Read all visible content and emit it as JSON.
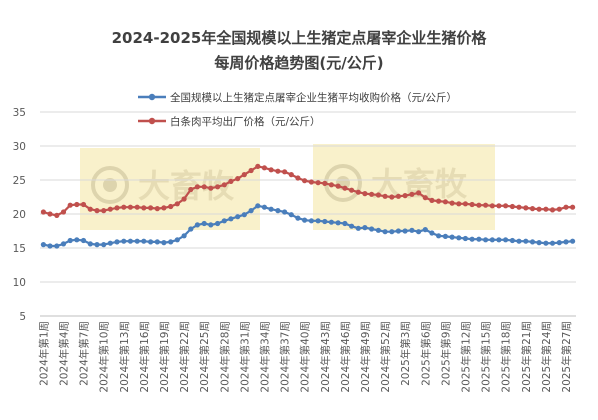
{
  "chart_data": {
    "type": "line",
    "title": "2024-2025年全国规模以上生猪定点屠宰企业生猪价格",
    "subtitle": "每周价格趋势图(元/公斤)",
    "xlabel": "",
    "ylabel": "",
    "ylim": [
      5,
      35
    ],
    "yticks": [
      5,
      10,
      15,
      20,
      25,
      30,
      35
    ],
    "grid": true,
    "legend_position": "top-right",
    "watermark": "大畜牧",
    "x": [
      "2024年第1周",
      "2024年第2周",
      "2024年第3周",
      "2024年第4周",
      "2024年第5周",
      "2024年第6周",
      "2024年第7周",
      "2024年第8周",
      "2024年第9周",
      "2024年第10周",
      "2024年第11周",
      "2024年第12周",
      "2024年第13周",
      "2024年第14周",
      "2024年第15周",
      "2024年第16周",
      "2024年第17周",
      "2024年第18周",
      "2024年第19周",
      "2024年第20周",
      "2024年第21周",
      "2024年第22周",
      "2024年第23周",
      "2024年第24周",
      "2024年第25周",
      "2024年第26周",
      "2024年第27周",
      "2024年第28周",
      "2024年第29周",
      "2024年第30周",
      "2024年第31周",
      "2024年第32周",
      "2024年第33周",
      "2024年第34周",
      "2024年第35周",
      "2024年第36周",
      "2024年第37周",
      "2024年第38周",
      "2024年第39周",
      "2024年第40周",
      "2024年第41周",
      "2024年第42周",
      "2024年第43周",
      "2024年第44周",
      "2024年第45周",
      "2024年第46周",
      "2024年第47周",
      "2024年第48周",
      "2024年第49周",
      "2024年第50周",
      "2024年第51周",
      "2024年第52周",
      "2025年第1周",
      "2025年第2周",
      "2025年第3周",
      "2025年第4周",
      "2025年第5周",
      "2025年第6周",
      "2025年第7周",
      "2025年第8周",
      "2025年第9周",
      "2025年第10周",
      "2025年第11周",
      "2025年第12周",
      "2025年第13周",
      "2025年第14周",
      "2025年第15周",
      "2025年第16周",
      "2025年第17周",
      "2025年第18周",
      "2025年第19周",
      "2025年第20周",
      "2025年第21周",
      "2025年第22周",
      "2025年第23周",
      "2025年第24周",
      "2025年第25周",
      "2025年第26周",
      "2025年第27周",
      "2025年第28周"
    ],
    "tick_indices": [
      0,
      3,
      6,
      9,
      12,
      15,
      18,
      21,
      24,
      27,
      30,
      33,
      36,
      39,
      42,
      45,
      48,
      51,
      54,
      57,
      60,
      63,
      66,
      69,
      72,
      75,
      78
    ],
    "tick_labels": [
      "2024年第1周",
      "2024年第4周",
      "2024年第7周",
      "2024年第10周",
      "2024年第13周",
      "2024年第16周",
      "2024年第19周",
      "2024年第22周",
      "2024年第25周",
      "2024年第28周",
      "2024年第31周",
      "2024年第34周",
      "2024年第37周",
      "2024年第40周",
      "2024年第43周",
      "2024年第46周",
      "2024年第49周",
      "2024年第52周",
      "2025年第3周",
      "2025年第6周",
      "2025年第9周",
      "2025年第12周",
      "2025年第15周",
      "2025年第18周",
      "2025年第21周",
      "2025年第24周",
      "2025年第27周"
    ],
    "series": [
      {
        "name": "全国规模以上生猪定点屠宰企业生猪平均收购价格（元/公斤）",
        "color": "#4a7ebb",
        "values": [
          15.5,
          15.3,
          15.3,
          15.6,
          16.1,
          16.2,
          16.1,
          15.6,
          15.5,
          15.5,
          15.7,
          15.9,
          16.0,
          16.0,
          16.0,
          16.0,
          15.9,
          15.9,
          15.8,
          15.9,
          16.2,
          16.8,
          17.8,
          18.4,
          18.6,
          18.4,
          18.6,
          19.0,
          19.3,
          19.6,
          19.9,
          20.5,
          21.2,
          21.0,
          20.7,
          20.5,
          20.3,
          19.9,
          19.4,
          19.1,
          19.0,
          19.0,
          18.9,
          18.8,
          18.7,
          18.6,
          18.2,
          17.9,
          18.0,
          17.8,
          17.6,
          17.4,
          17.4,
          17.5,
          17.5,
          17.6,
          17.4,
          17.7,
          17.2,
          16.8,
          16.7,
          16.6,
          16.5,
          16.4,
          16.3,
          16.3,
          16.2,
          16.2,
          16.2,
          16.2,
          16.1,
          16.0,
          16.0,
          15.9,
          15.8,
          15.7,
          15.7,
          15.8,
          15.9,
          16.0
        ]
      },
      {
        "name": "白条肉平均出厂价格（元/公斤）",
        "color": "#c0504d",
        "values": [
          20.3,
          20.0,
          19.8,
          20.3,
          21.3,
          21.4,
          21.4,
          20.7,
          20.5,
          20.5,
          20.7,
          20.9,
          21.0,
          21.0,
          21.0,
          20.9,
          20.9,
          20.8,
          20.9,
          21.1,
          21.5,
          22.2,
          23.6,
          24.0,
          24.0,
          23.8,
          24.0,
          24.3,
          24.8,
          25.2,
          25.8,
          26.4,
          27.0,
          26.8,
          26.5,
          26.3,
          26.2,
          25.8,
          25.3,
          24.9,
          24.7,
          24.6,
          24.5,
          24.3,
          24.1,
          23.8,
          23.5,
          23.2,
          23.0,
          22.9,
          22.8,
          22.6,
          22.5,
          22.6,
          22.7,
          22.9,
          23.1,
          22.4,
          22.0,
          21.9,
          21.8,
          21.6,
          21.5,
          21.5,
          21.4,
          21.3,
          21.3,
          21.2,
          21.2,
          21.2,
          21.1,
          21.0,
          20.9,
          20.8,
          20.7,
          20.7,
          20.6,
          20.7,
          21.0,
          21.0
        ]
      }
    ]
  }
}
